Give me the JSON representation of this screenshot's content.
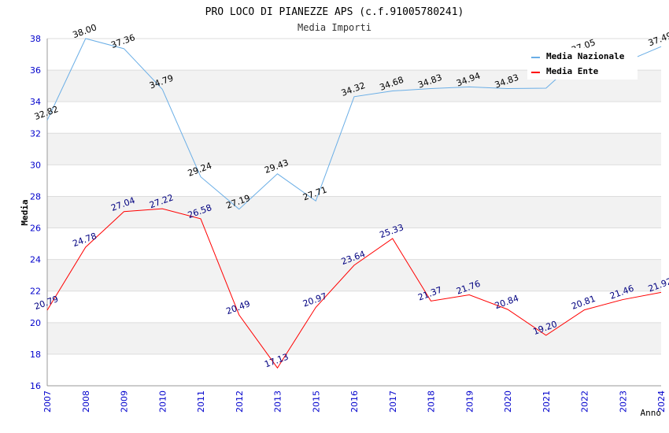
{
  "chart_data": {
    "type": "line",
    "title": "PRO LOCO DI PIANEZZE APS (c.f.91005780241)",
    "subtitle": "Media Importi",
    "xlabel": "Anno",
    "ylabel": "Media",
    "ylim": [
      16,
      38
    ],
    "yticks": [
      "16",
      "18",
      "20",
      "22",
      "24",
      "26",
      "28",
      "30",
      "32",
      "34",
      "36",
      "38"
    ],
    "categories": [
      "2007",
      "2008",
      "2009",
      "2010",
      "2011",
      "2012",
      "2013",
      "2015",
      "2016",
      "2017",
      "2018",
      "2019",
      "2020",
      "2021",
      "2022",
      "2023",
      "2024"
    ],
    "grid": true,
    "legend_position": "top-right",
    "series": [
      {
        "name": "Media Nazionale",
        "color": "#6aaee6",
        "label_color": "#000000",
        "values": [
          32.82,
          38.0,
          37.36,
          34.79,
          29.24,
          27.19,
          29.43,
          27.71,
          34.32,
          34.68,
          34.83,
          34.94,
          34.83,
          34.86,
          37.05,
          36.46,
          37.49
        ],
        "labels": [
          "32.82",
          "38.00",
          "37.36",
          "34.79",
          "29.24",
          "27.19",
          "29.43",
          "27.71",
          "34.32",
          "34.68",
          "34.83",
          "34.94",
          "34.83",
          "",
          "37.05",
          "",
          "37.49"
        ]
      },
      {
        "name": "Media Ente",
        "color": "#ff0000",
        "label_color": "#000080",
        "values": [
          20.79,
          24.78,
          27.04,
          27.22,
          26.58,
          20.49,
          17.13,
          20.97,
          23.64,
          25.33,
          21.37,
          21.76,
          20.84,
          19.2,
          20.81,
          21.46,
          21.92
        ],
        "labels": [
          "20.79",
          "24.78",
          "27.04",
          "27.22",
          "26.58",
          "20.49",
          "17.13",
          "20.97",
          "23.64",
          "25.33",
          "21.37",
          "21.76",
          "20.84",
          "19.20",
          "20.81",
          "21.46",
          "21.92"
        ]
      }
    ]
  }
}
